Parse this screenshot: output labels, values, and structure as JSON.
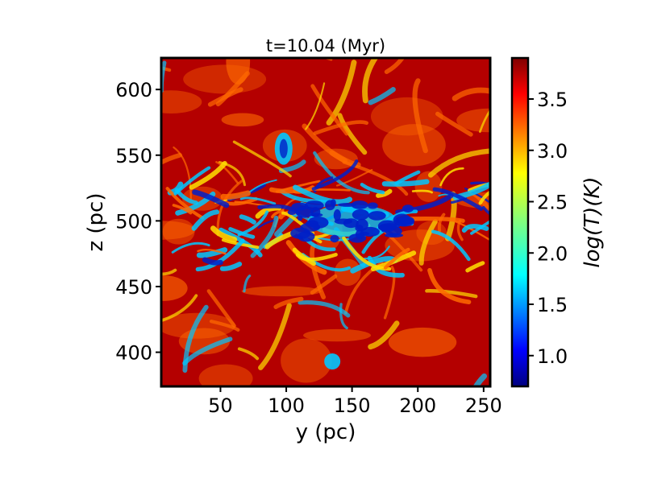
{
  "chart_data": {
    "type": "heatmap",
    "title": "t=10.04 (Myr)",
    "xlabel": "y (pc)",
    "ylabel": "z (pc)",
    "xlim": [
      5,
      255
    ],
    "ylim": [
      374,
      624
    ],
    "xticks": [
      50,
      100,
      150,
      200,
      250
    ],
    "yticks": [
      400,
      450,
      500,
      550,
      600
    ],
    "colorbar": {
      "label": "log(T)(K)",
      "colormap": "jet",
      "range": [
        0.7,
        3.9
      ],
      "ticks": [
        1.0,
        1.5,
        2.0,
        2.5,
        3.0,
        3.5
      ]
    },
    "field_description": "temperature map: hot red background, filamentary cold gas concentrated in a midplane band near z=490-510 pc",
    "colors": {
      "hot": "#b40000",
      "warm": "#ff6a00",
      "mid": "#ffe000",
      "cool": "#00c8ff",
      "cold": "#0020c8"
    }
  }
}
